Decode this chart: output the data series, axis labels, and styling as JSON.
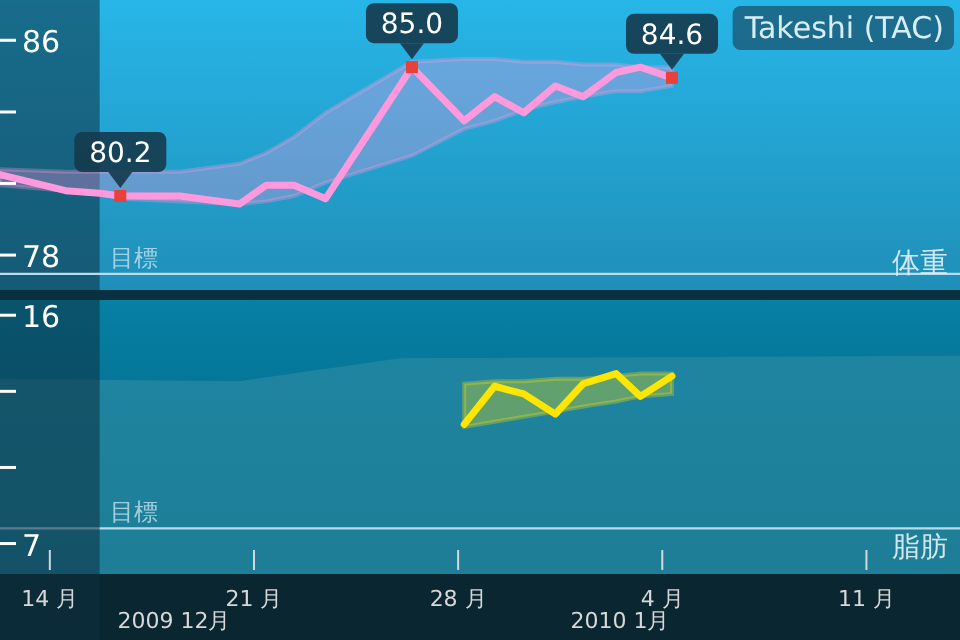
{
  "chart_data": [
    {
      "type": "line",
      "title": "体重",
      "xlim": [
        "2009-12-12T07:00",
        "2010-01-14T05:00"
      ],
      "ylim": [
        76.7,
        87.5
      ],
      "yticks": [
        86,
        {
          "value": 83.33,
          "label": null
        },
        {
          "value": 80.67,
          "label": null
        },
        78
      ],
      "tick_labels": "y",
      "series": [
        {
          "color": "#ff99dd",
          "x": [
            "2009-12-12T07:00",
            "2009-12-14T13:00",
            "2009-12-15T17:00",
            "2009-12-16T10:00",
            "2009-12-18T11:00",
            "2009-12-20T12:00",
            "2009-12-21T10:00",
            "2009-12-22T09:00",
            "2009-12-23T11:00",
            "2009-12-26T10:00",
            "2009-12-28T05:00",
            "2009-12-29T06:00",
            "2009-12-30T06:00",
            "2009-12-31T08:00",
            "2010-01-01T07:00",
            "2010-01-02T10:00",
            "2010-01-03T06:00",
            "2010-01-04T08:00"
          ],
          "values": [
            81.0,
            80.4,
            80.3,
            80.2,
            80.2,
            79.9,
            80.6,
            80.6,
            80.1,
            85.0,
            83.0,
            83.9,
            83.3,
            84.3,
            83.9,
            84.8,
            85.0,
            84.6
          ],
          "upper": [
            81.2,
            81.1,
            81.1,
            81.1,
            81.1,
            81.4,
            81.8,
            82.4,
            83.3,
            85.2,
            85.3,
            85.3,
            85.2,
            85.2,
            85.1,
            85.1,
            85.0,
            85.0
          ],
          "lower": [
            80.6,
            80.4,
            80.3,
            80.1,
            80.0,
            79.9,
            80.0,
            80.2,
            80.7,
            81.7,
            82.7,
            83.0,
            83.4,
            83.7,
            83.9,
            84.1,
            84.1,
            84.3
          ]
        }
      ],
      "ref_lines": [
        {
          "axis": "y",
          "value": 77.3,
          "label": "目標",
          "color": "#b8dcea"
        }
      ],
      "bands": [
        {
          "axis": "x",
          "from": "2009-12-12T07:00",
          "to": "2009-12-15T17:00",
          "color": "#0d2f40"
        }
      ],
      "annotations": [
        "Takeshi (TAC)",
        {
          "text": "80.2",
          "x": "2009-12-16T10:00",
          "y": 80.2
        },
        {
          "text": "85.0",
          "x": "2009-12-26T10:00",
          "y": 85.0
        },
        {
          "text": "84.6",
          "x": "2010-01-04T08:00",
          "y": 84.6
        }
      ]
    },
    {
      "type": "line",
      "title": "脂肪",
      "xlim": [
        "2009-12-12T07:00",
        "2010-01-14T05:00"
      ],
      "ylim": [
        5.8,
        16.6
      ],
      "yticks": [
        16,
        {
          "value": 13,
          "label": null
        },
        {
          "value": 10,
          "label": null
        },
        7
      ],
      "xticks": [
        {
          "value": "2009-12-14",
          "label": "14 月"
        },
        {
          "value": "2009-12-21",
          "label": "21 月"
        },
        {
          "value": "2009-12-28",
          "label": "28 月"
        },
        {
          "value": "2010-01-04",
          "label": "4 月"
        },
        {
          "value": "2010-01-11",
          "label": "11 月"
        }
      ],
      "series": [
        {
          "type": "area",
          "color": "#2a8aa3",
          "x": [
            "2009-12-12T07:00",
            "2009-12-20T12:00",
            "2009-12-26T00:00",
            "2010-01-14T05:00"
          ],
          "values": [
            13.5,
            13.4,
            14.3,
            14.4
          ]
        },
        {
          "color": "#ffe600",
          "x": [
            "2009-12-28T05:00",
            "2009-12-29T06:00",
            "2009-12-30T06:00",
            "2009-12-31T08:00",
            "2010-01-01T07:00",
            "2010-01-02T10:00",
            "2010-01-03T06:00",
            "2010-01-04T08:00"
          ],
          "values": [
            11.7,
            13.2,
            12.9,
            12.1,
            13.3,
            13.7,
            12.8,
            13.6
          ],
          "upper": [
            13.3,
            13.4,
            13.4,
            13.5,
            13.5,
            13.6,
            13.7,
            13.7
          ],
          "lower": [
            11.6,
            11.8,
            12.0,
            12.2,
            12.4,
            12.6,
            12.8,
            12.9
          ]
        }
      ],
      "ref_lines": [
        {
          "axis": "y",
          "value": 7.6,
          "label": "目標",
          "color": "#b8dcea"
        }
      ],
      "bands": [
        {
          "axis": "x",
          "from": "2009-12-12T07:00",
          "to": "2009-12-15T17:00",
          "color": "#0d2f40"
        }
      ],
      "annotations": [
        "2009 12月",
        "2010 1月"
      ]
    }
  ]
}
